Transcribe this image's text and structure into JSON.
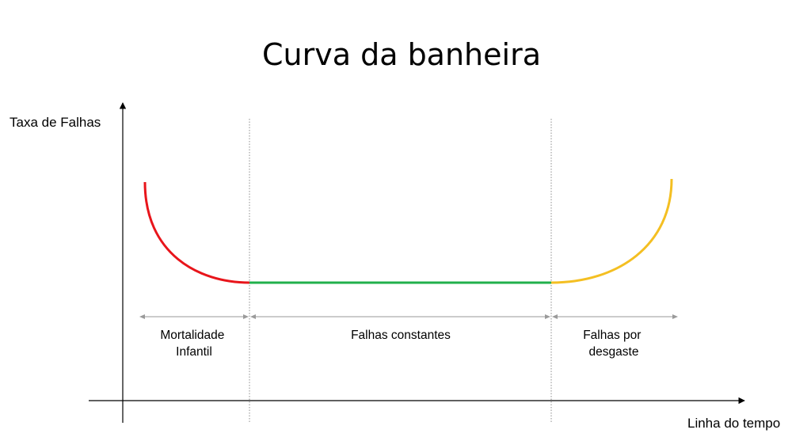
{
  "title": "Curva da banheira",
  "y_axis_label": "Taxa de Falhas",
  "x_axis_label": "Linha do tempo",
  "phases": [
    {
      "lines": [
        "Mortalidade",
        "Infantil"
      ],
      "color": "#e8151b"
    },
    {
      "lines": [
        "Falhas constantes"
      ],
      "color": "#21b04b"
    },
    {
      "lines": [
        "Falhas por",
        "desgaste"
      ],
      "color": "#f4bf22"
    }
  ]
}
